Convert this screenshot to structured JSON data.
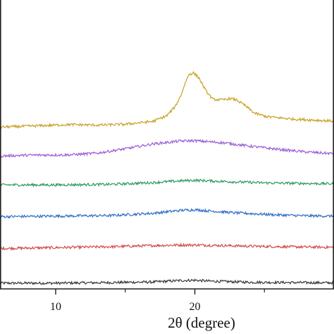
{
  "chart_data": {
    "type": "line",
    "title": "",
    "xlabel": "2θ (degree)",
    "ylabel": "",
    "xlim": [
      6,
      30
    ],
    "x_ticks_major": [
      10,
      20
    ],
    "x_ticks_minor": [
      15,
      25
    ],
    "ylim": [
      0,
      100
    ],
    "grid": false,
    "legend": "none",
    "series": [
      {
        "color": "#3a3a3a",
        "offset": 2,
        "points": [
          [
            6,
            0.0
          ],
          [
            10,
            0.0
          ],
          [
            14,
            0.2
          ],
          [
            17,
            0.4
          ],
          [
            19,
            0.9
          ],
          [
            20,
            1.0
          ],
          [
            21,
            0.7
          ],
          [
            24,
            0.3
          ],
          [
            27,
            0.2
          ],
          [
            30,
            0.1
          ]
        ]
      },
      {
        "color": "#d24b4b",
        "offset": 14,
        "points": [
          [
            6,
            0.0
          ],
          [
            10,
            0.3
          ],
          [
            14,
            0.6
          ],
          [
            17,
            1.0
          ],
          [
            19,
            1.2
          ],
          [
            20,
            1.2
          ],
          [
            22,
            1.0
          ],
          [
            25,
            0.7
          ],
          [
            28,
            0.5
          ],
          [
            30,
            0.4
          ]
        ]
      },
      {
        "color": "#2f6fc4",
        "offset": 25,
        "points": [
          [
            6,
            0.0
          ],
          [
            10,
            0.2
          ],
          [
            14,
            0.4
          ],
          [
            17,
            1.2
          ],
          [
            19,
            2.2
          ],
          [
            20,
            2.4
          ],
          [
            21,
            2.0
          ],
          [
            23,
            1.3
          ],
          [
            26,
            0.6
          ],
          [
            28,
            0.3
          ],
          [
            30,
            0.2
          ]
        ]
      },
      {
        "color": "#2e9a63",
        "offset": 36,
        "points": [
          [
            6,
            0.0
          ],
          [
            10,
            0.0
          ],
          [
            14,
            0.2
          ],
          [
            17,
            0.8
          ],
          [
            19,
            1.4
          ],
          [
            20,
            1.6
          ],
          [
            22,
            1.2
          ],
          [
            25,
            0.7
          ],
          [
            28,
            0.5
          ],
          [
            30,
            0.4
          ]
        ]
      },
      {
        "color": "#9b5fd6",
        "offset": 46,
        "points": [
          [
            6,
            0.0
          ],
          [
            8,
            0.3
          ],
          [
            11,
            0.4
          ],
          [
            13,
            1.0
          ],
          [
            15,
            2.5
          ],
          [
            17,
            4.2
          ],
          [
            19,
            5.2
          ],
          [
            20,
            5.3
          ],
          [
            22,
            4.6
          ],
          [
            24,
            3.4
          ],
          [
            26,
            2.3
          ],
          [
            28,
            1.4
          ],
          [
            30,
            0.8
          ]
        ]
      },
      {
        "color": "#c9a227",
        "offset": 56,
        "points": [
          [
            6,
            0.0
          ],
          [
            9,
            0.5
          ],
          [
            11,
            0.9
          ],
          [
            13,
            0.7
          ],
          [
            15,
            1.0
          ],
          [
            17,
            2.0
          ],
          [
            18,
            4.0
          ],
          [
            18.6,
            7.2
          ],
          [
            19,
            11.0
          ],
          [
            19.4,
            16.5
          ],
          [
            19.6,
            18.3
          ],
          [
            19.9,
            18.8
          ],
          [
            20.3,
            17.0
          ],
          [
            20.8,
            12.5
          ],
          [
            21.3,
            9.6
          ],
          [
            22,
            9.4
          ],
          [
            22.5,
            9.9
          ],
          [
            23,
            9.4
          ],
          [
            23.6,
            7.5
          ],
          [
            24.3,
            4.8
          ],
          [
            25.2,
            3.6
          ],
          [
            27,
            2.8
          ],
          [
            30,
            2.1
          ]
        ]
      }
    ]
  }
}
